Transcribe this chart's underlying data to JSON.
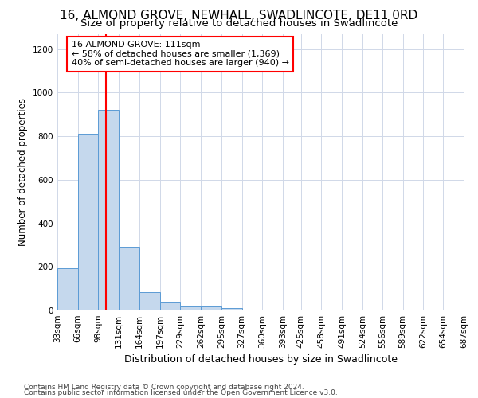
{
  "title": "16, ALMOND GROVE, NEWHALL, SWADLINCOTE, DE11 0RD",
  "subtitle": "Size of property relative to detached houses in Swadlincote",
  "xlabel": "Distribution of detached houses by size in Swadlincote",
  "ylabel": "Number of detached properties",
  "footnote1": "Contains HM Land Registry data © Crown copyright and database right 2024.",
  "footnote2": "Contains public sector information licensed under the Open Government Licence v3.0.",
  "annotation_line1": "16 ALMOND GROVE: 111sqm",
  "annotation_line2": "← 58% of detached houses are smaller (1,369)",
  "annotation_line3": "40% of semi-detached houses are larger (940) →",
  "bar_color": "#c5d8ed",
  "bar_edge_color": "#5b9bd5",
  "red_line_x": 111,
  "bin_edges": [
    33,
    66,
    99,
    132,
    165,
    198,
    231,
    264,
    297,
    330,
    363,
    396,
    425,
    458,
    491,
    524,
    556,
    589,
    622,
    654,
    687
  ],
  "bin_values": [
    193,
    810,
    920,
    293,
    85,
    35,
    20,
    18,
    12,
    0,
    0,
    0,
    0,
    0,
    0,
    0,
    0,
    0,
    0,
    0
  ],
  "xtick_labels": [
    "33sqm",
    "66sqm",
    "98sqm",
    "131sqm",
    "164sqm",
    "197sqm",
    "229sqm",
    "262sqm",
    "295sqm",
    "327sqm",
    "360sqm",
    "393sqm",
    "425sqm",
    "458sqm",
    "491sqm",
    "524sqm",
    "556sqm",
    "589sqm",
    "622sqm",
    "654sqm",
    "687sqm"
  ],
  "ylim": [
    0,
    1270
  ],
  "yticks": [
    0,
    200,
    400,
    600,
    800,
    1000,
    1200
  ],
  "background_color": "#ffffff",
  "grid_color": "#d0d8e8",
  "title_fontsize": 11,
  "subtitle_fontsize": 9.5,
  "xlabel_fontsize": 9,
  "ylabel_fontsize": 8.5,
  "tick_fontsize": 7.5,
  "annotation_fontsize": 8,
  "footnote_fontsize": 6.5
}
